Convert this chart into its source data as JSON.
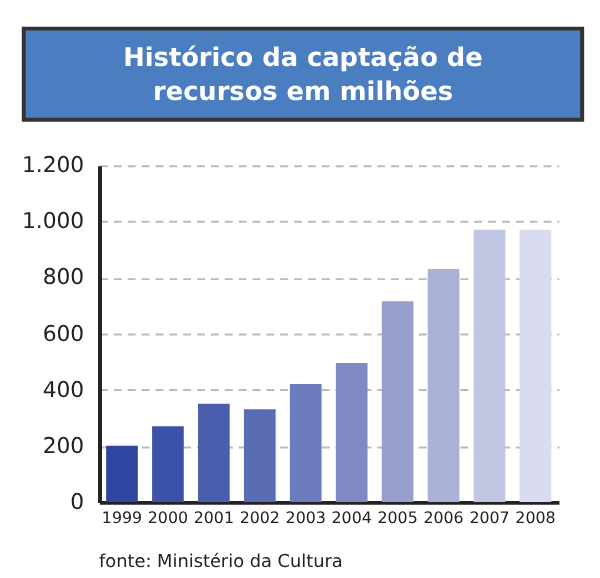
{
  "chart_data": {
    "type": "bar",
    "title": "Histórico da captação de\nrecursos em milhões",
    "categories": [
      "1999",
      "2000",
      "2001",
      "2002",
      "2003",
      "2004",
      "2005",
      "2006",
      "2007",
      "2008"
    ],
    "values": [
      200,
      270,
      350,
      330,
      420,
      495,
      715,
      830,
      970,
      970
    ],
    "colors": [
      "#2f46a0",
      "#3b52a8",
      "#4a5eae",
      "#5a6cb4",
      "#6c7bbc",
      "#8089c3",
      "#979fcd",
      "#aab1d6",
      "#c0c5e1",
      "#d9dcee"
    ],
    "ylim": [
      0,
      1200
    ],
    "yticks": [
      0,
      200,
      400,
      600,
      800,
      {
        "value": 1000,
        "label": "1.000"
      },
      {
        "value": 1200,
        "label": "1.200"
      }
    ],
    "grid": "y",
    "annotations": [
      "fonte: Ministério da Cultura"
    ]
  }
}
